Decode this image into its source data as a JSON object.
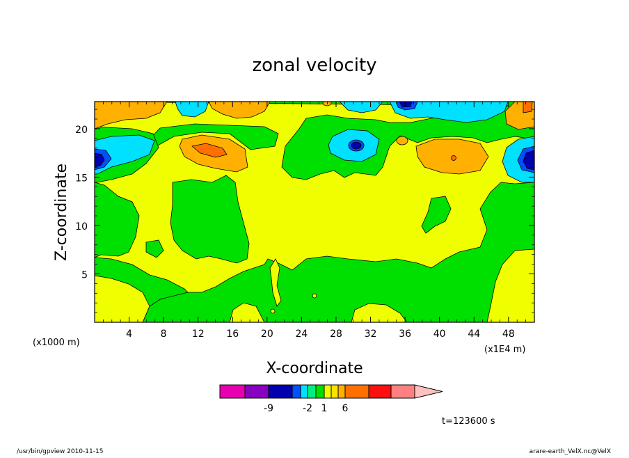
{
  "chart_data": {
    "type": "heatmap",
    "title": "zonal velocity",
    "xlabel": "X-coordinate",
    "ylabel": "Z-coordinate",
    "x_tick_labels": [
      "4",
      "8",
      "12",
      "16",
      "20",
      "24",
      "28",
      "32",
      "36",
      "40",
      "44",
      "48"
    ],
    "x_ticks": [
      4,
      8,
      12,
      16,
      20,
      24,
      28,
      32,
      36,
      40,
      44,
      48
    ],
    "xlim": [
      0,
      51
    ],
    "y_tick_labels": [
      "5",
      "10",
      "15",
      "20"
    ],
    "y_ticks": [
      5,
      10,
      15,
      20
    ],
    "ylim": [
      0,
      22.8
    ],
    "x_unit_left": "(x1000 m)",
    "x_unit_right": "(x1E4 m)",
    "time_label": "t=123600 s",
    "colorbar": {
      "colors": [
        "#e800b0",
        "#8800c0",
        "#0000b0",
        "#0050ff",
        "#00e0ff",
        "#00f080",
        "#00e000",
        "#f0ff00",
        "#ffe000",
        "#ffb000",
        "#ff7000",
        "#ff1010",
        "#ff8080",
        "#ffc0c0"
      ],
      "labels": [
        "-9",
        "-2",
        "1",
        "6"
      ],
      "label_after_index": [
        1,
        4,
        6,
        9
      ]
    },
    "contour_fields": [
      {
        "level": "1",
        "x": [
          0,
          5,
          8,
          10,
          13,
          16,
          20,
          22,
          26,
          30,
          34,
          38,
          41,
          44,
          48,
          51
        ],
        "y_from_top": [
          4,
          5,
          3,
          2,
          2,
          2,
          3,
          5,
          5,
          4,
          3,
          3,
          4,
          5,
          7,
          5
        ]
      }
    ],
    "features": [
      {
        "name": "low-left",
        "x": 1,
        "z": 17
      },
      {
        "name": "low-center",
        "x": 30,
        "z": 18.3
      },
      {
        "name": "low-top",
        "x": 36,
        "z": 22.5
      },
      {
        "name": "low-right",
        "x": 50,
        "z": 17
      },
      {
        "name": "high-left",
        "x": 14,
        "z": 18
      },
      {
        "name": "high-right",
        "x": 42,
        "z": 17
      }
    ]
  },
  "footer": {
    "left": "/usr/bin/gpview   2010-11-15",
    "right": "arare-earth_VelX.nc@VelX"
  }
}
